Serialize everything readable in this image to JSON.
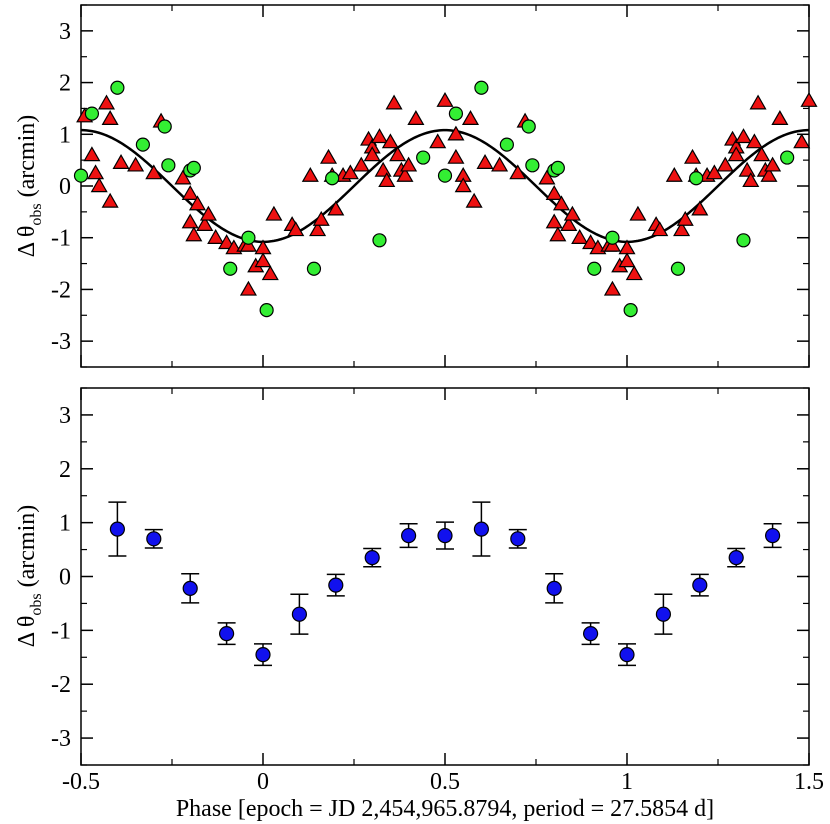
{
  "chart_data": [
    {
      "type": "scatter",
      "panel": "top",
      "title": "",
      "xlim": [
        -0.5,
        1.5
      ],
      "ylim": [
        -3.5,
        3.5
      ],
      "xticks": [
        -0.5,
        0,
        0.5,
        1,
        1.5
      ],
      "yticks": [
        -3,
        -2,
        -1,
        0,
        1,
        2,
        3
      ],
      "ytick_labels": [
        "-3",
        "-2",
        "-1",
        "0",
        "1",
        "2",
        "3"
      ],
      "ylabel": "Δ θ",
      "ylabel_sub": "obs",
      "ylabel_unit": "(arcmin)",
      "model_curve": {
        "name": "sinusoid fit",
        "amplitude": 1.08,
        "peak_phase": 0.5,
        "period_in_phase": 1.0,
        "color": "#000000"
      },
      "series": [
        {
          "name": "triangles",
          "marker": "triangle",
          "color": "#ee1111",
          "points": [
            [
              -0.49,
              1.35
            ],
            [
              -0.47,
              0.6
            ],
            [
              -0.46,
              0.25
            ],
            [
              -0.45,
              0.0
            ],
            [
              -0.42,
              1.3
            ],
            [
              -0.43,
              1.6
            ],
            [
              -0.42,
              -0.3
            ],
            [
              -0.39,
              0.45
            ],
            [
              -0.35,
              0.4
            ],
            [
              -0.3,
              0.25
            ],
            [
              -0.28,
              1.25
            ],
            [
              -0.22,
              0.15
            ],
            [
              -0.2,
              -0.15
            ],
            [
              -0.2,
              -0.7
            ],
            [
              -0.19,
              -0.95
            ],
            [
              -0.18,
              -0.35
            ],
            [
              -0.16,
              -0.75
            ],
            [
              -0.15,
              -0.55
            ],
            [
              -0.13,
              -1.0
            ],
            [
              -0.1,
              -1.1
            ],
            [
              -0.08,
              -1.2
            ],
            [
              -0.05,
              -1.15
            ],
            [
              -0.04,
              -1.15
            ],
            [
              -0.04,
              -2.0
            ],
            [
              -0.02,
              -1.55
            ],
            [
              0.0,
              -1.2
            ],
            [
              0.0,
              -1.45
            ],
            [
              0.02,
              -1.7
            ],
            [
              0.03,
              -0.55
            ],
            [
              0.08,
              -0.75
            ],
            [
              0.09,
              -0.85
            ],
            [
              0.13,
              0.2
            ],
            [
              0.15,
              -0.85
            ],
            [
              0.16,
              -0.65
            ],
            [
              0.18,
              0.55
            ],
            [
              0.19,
              0.2
            ],
            [
              0.2,
              -0.45
            ],
            [
              0.22,
              0.2
            ],
            [
              0.24,
              0.25
            ],
            [
              0.27,
              0.4
            ],
            [
              0.29,
              0.9
            ],
            [
              0.3,
              0.75
            ],
            [
              0.3,
              0.6
            ],
            [
              0.32,
              0.95
            ],
            [
              0.33,
              0.3
            ],
            [
              0.34,
              0.1
            ],
            [
              0.35,
              0.85
            ],
            [
              0.36,
              1.6
            ],
            [
              0.37,
              0.6
            ],
            [
              0.38,
              0.3
            ],
            [
              0.39,
              0.2
            ],
            [
              0.4,
              0.4
            ],
            [
              0.42,
              1.3
            ],
            [
              0.48,
              0.85
            ],
            [
              0.5,
              1.65
            ],
            [
              0.53,
              1.0
            ],
            [
              0.53,
              0.55
            ],
            [
              0.55,
              0.2
            ],
            [
              0.55,
              0.0
            ],
            [
              0.57,
              1.3
            ],
            [
              0.58,
              -0.3
            ],
            [
              0.61,
              0.45
            ],
            [
              0.65,
              0.4
            ],
            [
              0.7,
              0.25
            ],
            [
              0.72,
              1.25
            ],
            [
              0.78,
              0.15
            ],
            [
              0.8,
              -0.15
            ],
            [
              0.8,
              -0.7
            ],
            [
              0.81,
              -0.95
            ],
            [
              0.82,
              -0.35
            ],
            [
              0.84,
              -0.75
            ],
            [
              0.85,
              -0.55
            ],
            [
              0.87,
              -1.0
            ],
            [
              0.9,
              -1.1
            ],
            [
              0.92,
              -1.2
            ],
            [
              0.95,
              -1.15
            ],
            [
              0.96,
              -1.15
            ],
            [
              0.96,
              -2.0
            ],
            [
              0.98,
              -1.55
            ],
            [
              1.0,
              -1.2
            ],
            [
              1.0,
              -1.45
            ],
            [
              1.02,
              -1.7
            ],
            [
              1.03,
              -0.55
            ],
            [
              1.08,
              -0.75
            ],
            [
              1.09,
              -0.85
            ],
            [
              1.13,
              0.2
            ],
            [
              1.15,
              -0.85
            ],
            [
              1.16,
              -0.65
            ],
            [
              1.18,
              0.55
            ],
            [
              1.19,
              0.2
            ],
            [
              1.2,
              -0.45
            ],
            [
              1.22,
              0.2
            ],
            [
              1.24,
              0.25
            ],
            [
              1.27,
              0.4
            ],
            [
              1.29,
              0.9
            ],
            [
              1.3,
              0.75
            ],
            [
              1.3,
              0.6
            ],
            [
              1.32,
              0.95
            ],
            [
              1.33,
              0.3
            ],
            [
              1.34,
              0.1
            ],
            [
              1.35,
              0.85
            ],
            [
              1.36,
              1.6
            ],
            [
              1.37,
              0.6
            ],
            [
              1.38,
              0.3
            ],
            [
              1.39,
              0.2
            ],
            [
              1.4,
              0.4
            ],
            [
              1.42,
              1.3
            ],
            [
              1.48,
              0.85
            ],
            [
              1.5,
              1.65
            ]
          ]
        },
        {
          "name": "circles",
          "marker": "circle",
          "color": "#33ee33",
          "points": [
            [
              -0.5,
              0.2
            ],
            [
              -0.47,
              1.4
            ],
            [
              -0.4,
              1.9
            ],
            [
              -0.33,
              0.8
            ],
            [
              -0.27,
              1.15
            ],
            [
              -0.26,
              0.4
            ],
            [
              -0.2,
              0.3
            ],
            [
              -0.19,
              0.35
            ],
            [
              -0.09,
              -1.6
            ],
            [
              -0.04,
              -1.0
            ],
            [
              0.01,
              -2.4
            ],
            [
              0.14,
              -1.6
            ],
            [
              0.19,
              0.15
            ],
            [
              0.32,
              -1.05
            ],
            [
              0.44,
              0.55
            ],
            [
              0.5,
              0.2
            ],
            [
              0.53,
              1.4
            ],
            [
              0.6,
              1.9
            ],
            [
              0.67,
              0.8
            ],
            [
              0.73,
              1.15
            ],
            [
              0.74,
              0.4
            ],
            [
              0.8,
              0.3
            ],
            [
              0.81,
              0.35
            ],
            [
              0.91,
              -1.6
            ],
            [
              0.96,
              -1.0
            ],
            [
              1.01,
              -2.4
            ],
            [
              1.14,
              -1.6
            ],
            [
              1.19,
              0.15
            ],
            [
              1.32,
              -1.05
            ],
            [
              1.44,
              0.55
            ]
          ]
        }
      ]
    },
    {
      "type": "scatter",
      "panel": "bottom",
      "title": "",
      "xlim": [
        -0.5,
        1.5
      ],
      "ylim": [
        -3.5,
        3.5
      ],
      "xticks": [
        -0.5,
        0,
        0.5,
        1,
        1.5
      ],
      "xtick_labels": [
        "-0.5",
        "0",
        "0.5",
        "1",
        "1.5"
      ],
      "yticks": [
        -3,
        -2,
        -1,
        0,
        1,
        2,
        3
      ],
      "ytick_labels": [
        "-3",
        "-2",
        "-1",
        "0",
        "1",
        "2",
        "3"
      ],
      "xlabel": "Phase [epoch = JD 2,454,965.8794, period = 27.5854 d]",
      "ylabel": "Δ θ",
      "ylabel_sub": "obs",
      "ylabel_unit": "(arcmin)",
      "series": [
        {
          "name": "binned means",
          "marker": "circle",
          "color": "#1111ee",
          "points": [
            {
              "x": -0.4,
              "y": 0.88,
              "err": 0.5
            },
            {
              "x": -0.3,
              "y": 0.7,
              "err": 0.17
            },
            {
              "x": -0.2,
              "y": -0.22,
              "err": 0.27
            },
            {
              "x": -0.1,
              "y": -1.06,
              "err": 0.2
            },
            {
              "x": 0.0,
              "y": -1.45,
              "err": 0.2
            },
            {
              "x": 0.1,
              "y": -0.7,
              "err": 0.37
            },
            {
              "x": 0.2,
              "y": -0.16,
              "err": 0.2
            },
            {
              "x": 0.3,
              "y": 0.35,
              "err": 0.17
            },
            {
              "x": 0.4,
              "y": 0.76,
              "err": 0.22
            },
            {
              "x": 0.5,
              "y": 0.76,
              "err": 0.25
            },
            {
              "x": 0.6,
              "y": 0.88,
              "err": 0.5
            },
            {
              "x": 0.7,
              "y": 0.7,
              "err": 0.17
            },
            {
              "x": 0.8,
              "y": -0.22,
              "err": 0.27
            },
            {
              "x": 0.9,
              "y": -1.06,
              "err": 0.2
            },
            {
              "x": 1.0,
              "y": -1.45,
              "err": 0.2
            },
            {
              "x": 1.1,
              "y": -0.7,
              "err": 0.37
            },
            {
              "x": 1.2,
              "y": -0.16,
              "err": 0.2
            },
            {
              "x": 1.3,
              "y": 0.35,
              "err": 0.17
            },
            {
              "x": 1.4,
              "y": 0.76,
              "err": 0.22
            }
          ]
        }
      ]
    }
  ]
}
